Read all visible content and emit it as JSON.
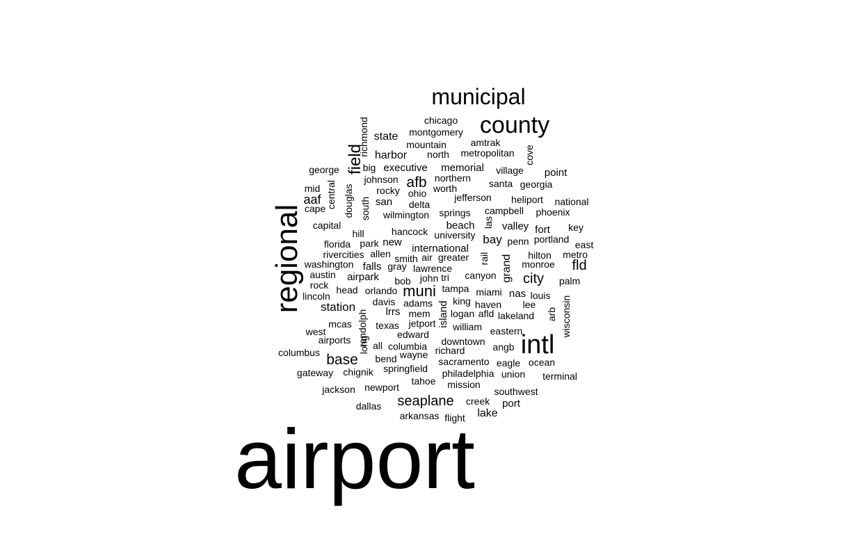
{
  "words": [
    "airport",
    "regional",
    "municipal",
    "county",
    "intl",
    "field",
    "afb",
    "muni",
    "base",
    "seaplane",
    "fld",
    "city",
    "aaf",
    "station",
    "state",
    "harbor",
    "executive",
    "memorial",
    "international",
    "beach",
    "valley",
    "bay",
    "point",
    "fort",
    "nas",
    "grand",
    "island",
    "airpark",
    "falls",
    "new",
    "san",
    "lake",
    "port",
    "lrrs",
    "chicago",
    "montgomery",
    "richmond",
    "mountain",
    "amtrak",
    "north",
    "metropolitan",
    "cove",
    "george",
    "big",
    "johnson",
    "village",
    "northern",
    "santa",
    "georgia",
    "mid",
    "central",
    "douglas",
    "rocky",
    "ohio",
    "worth",
    "jefferson",
    "heliport",
    "national",
    "cape",
    "south",
    "delta",
    "campbell",
    "phoenix",
    "wilmington",
    "springs",
    "capital",
    "hill",
    "hancock",
    "las",
    "key",
    "park",
    "university",
    "penn",
    "portland",
    "florida",
    "east",
    "rivercities",
    "allen",
    "smith",
    "air",
    "greater",
    "rail",
    "hilton",
    "metro",
    "washington",
    "gray",
    "lawrence",
    "monroe",
    "austin",
    "bob",
    "john",
    "tri",
    "canyon",
    "palm",
    "rock",
    "head",
    "orlando",
    "tampa",
    "miami",
    "louis",
    "lincoln",
    "davis",
    "adams",
    "king",
    "haven",
    "lee",
    "randolph",
    "mem",
    "logan",
    "afld",
    "lakeland",
    "arb",
    "wisconsin",
    "mcas",
    "texas",
    "jetport",
    "william",
    "west",
    "edward",
    "eastern",
    "airports",
    "long",
    "all",
    "columbia",
    "downtown",
    "angb",
    "columbus",
    "bend",
    "wayne",
    "richard",
    "eagle",
    "ocean",
    "sacramento",
    "springfield",
    "gateway",
    "chignik",
    "philadelphia",
    "union",
    "terminal",
    "tahoe",
    "jackson",
    "newport",
    "mission",
    "southwest",
    "creek",
    "dallas",
    "arkansas",
    "flight"
  ]
}
